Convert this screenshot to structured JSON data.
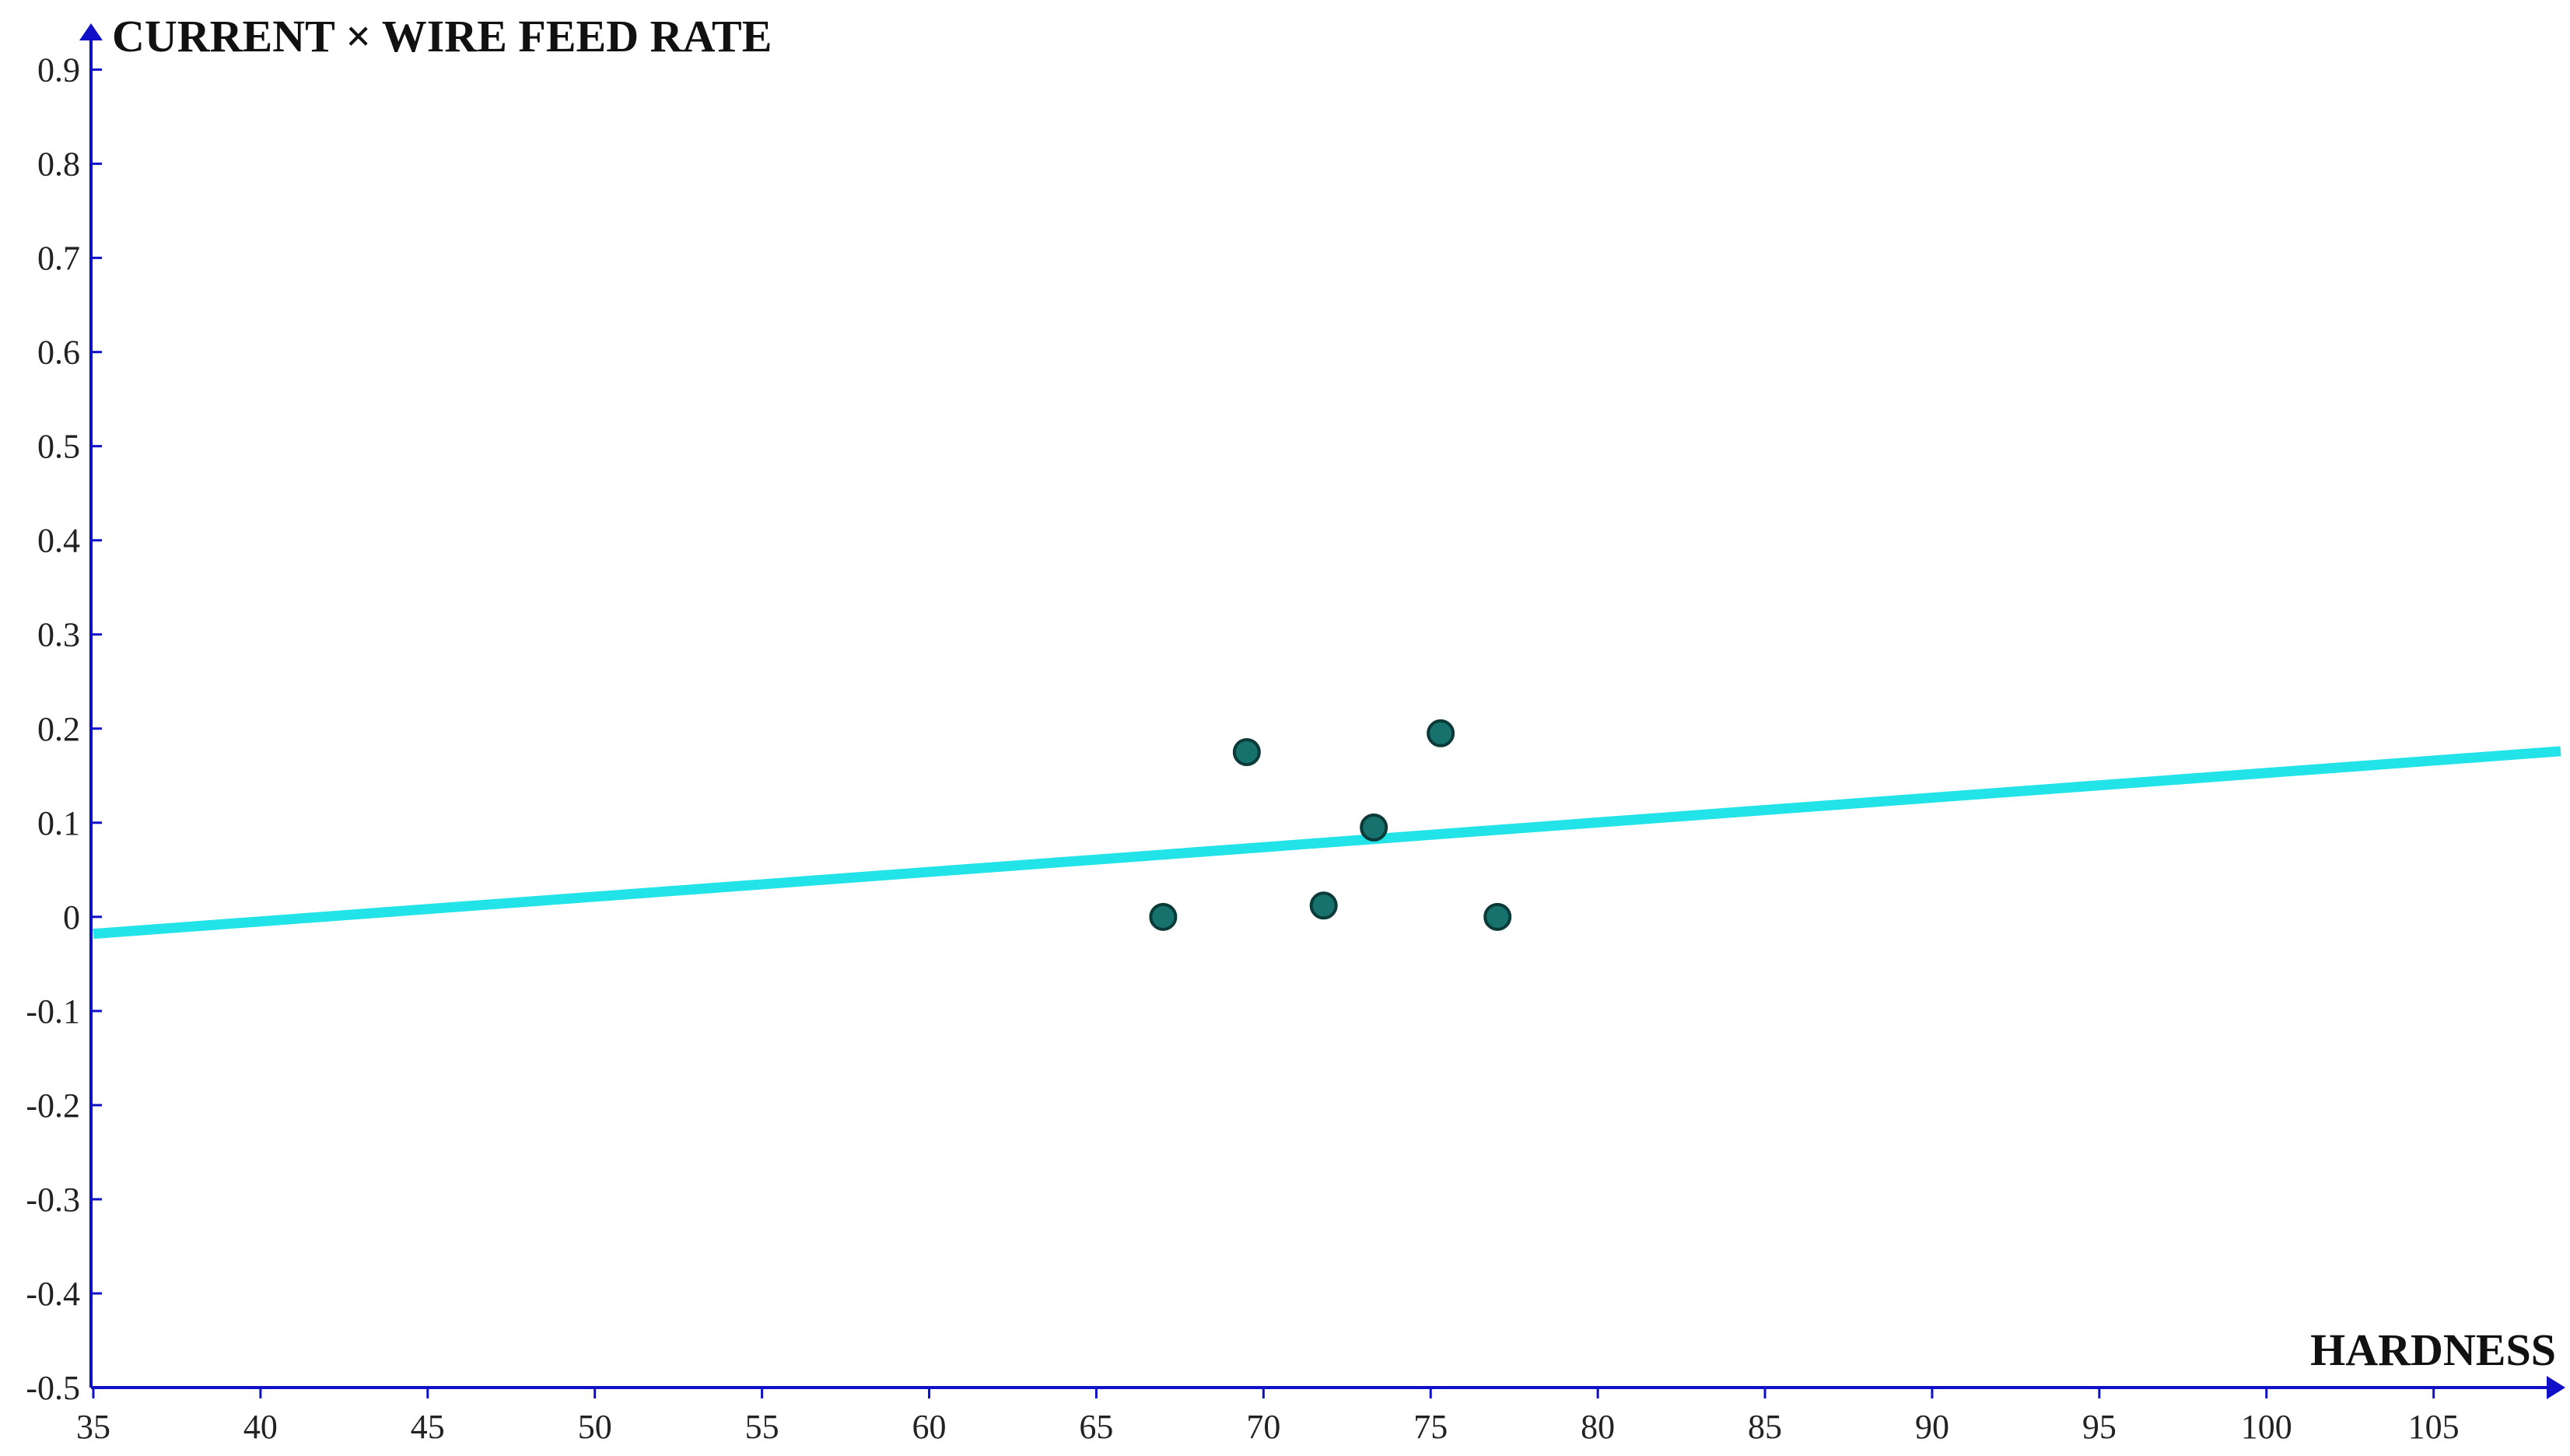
{
  "chart_data": {
    "type": "scatter",
    "title": "",
    "xlabel": "HARDNESS",
    "ylabel": "CURRENT × WIRE FEED RATE",
    "xlim": [
      35,
      108.8
    ],
    "ylim": [
      -0.5,
      0.95
    ],
    "x_ticks": [
      35,
      40,
      45,
      50,
      55,
      60,
      65,
      70,
      75,
      80,
      85,
      90,
      95,
      100,
      105
    ],
    "y_ticks": [
      -0.5,
      -0.4,
      -0.3,
      -0.2,
      -0.1,
      0,
      0.1,
      0.2,
      0.3,
      0.4,
      0.5,
      0.6,
      0.7,
      0.8,
      0.9
    ],
    "grid": false,
    "legend": "none",
    "series": [
      {
        "kind": "points",
        "points": [
          {
            "x": 67.0,
            "y": 0.0
          },
          {
            "x": 69.5,
            "y": 0.175
          },
          {
            "x": 71.8,
            "y": 0.012
          },
          {
            "x": 73.3,
            "y": 0.095
          },
          {
            "x": 75.3,
            "y": 0.195
          },
          {
            "x": 77.0,
            "y": 0.0
          }
        ]
      },
      {
        "kind": "fit-line",
        "points": [
          {
            "x": 35,
            "y": -0.018
          },
          {
            "x": 108.8,
            "y": 0.176
          }
        ]
      }
    ],
    "colors": {
      "axis": "#1010c8",
      "points": "#17716d",
      "point_outline": "#0b3b39",
      "fit_line": "#22e3e8"
    }
  }
}
